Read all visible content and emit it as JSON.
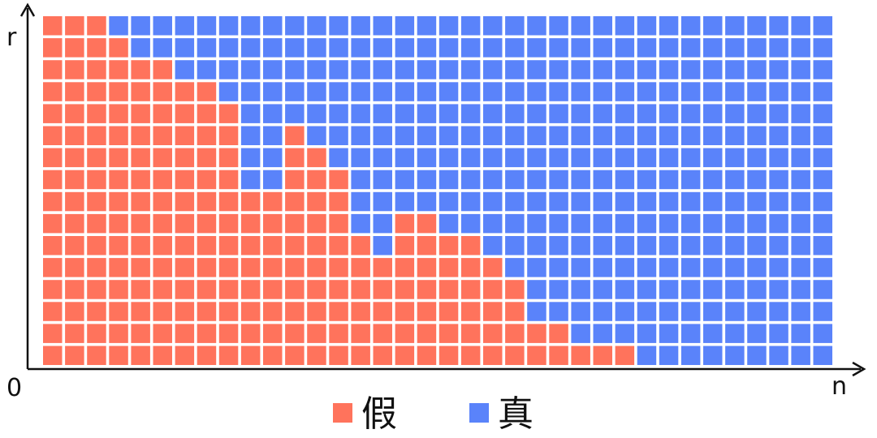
{
  "chart_data": {
    "type": "heatmap",
    "xlabel": "n",
    "ylabel": "r",
    "origin_label": "0",
    "columns": 36,
    "rows": 16,
    "category_colors": {
      "false": "#ff735c",
      "true": "#5a83fa"
    },
    "legend": [
      {
        "key": "false",
        "label": "假"
      },
      {
        "key": "true",
        "label": "真"
      }
    ],
    "row_order": "top-to-bottom",
    "false_runs": [
      [
        [
          0,
          3
        ]
      ],
      [
        [
          0,
          4
        ]
      ],
      [
        [
          0,
          6
        ]
      ],
      [
        [
          0,
          8
        ]
      ],
      [
        [
          0,
          9
        ]
      ],
      [
        [
          0,
          9
        ],
        [
          11,
          12
        ]
      ],
      [
        [
          0,
          9
        ],
        [
          11,
          13
        ]
      ],
      [
        [
          0,
          9
        ],
        [
          11,
          14
        ]
      ],
      [
        [
          0,
          14
        ]
      ],
      [
        [
          0,
          14
        ],
        [
          16,
          18
        ]
      ],
      [
        [
          0,
          15
        ],
        [
          16,
          20
        ]
      ],
      [
        [
          0,
          21
        ]
      ],
      [
        [
          0,
          22
        ]
      ],
      [
        [
          0,
          22
        ]
      ],
      [
        [
          0,
          24
        ]
      ],
      [
        [
          0,
          27
        ]
      ]
    ]
  }
}
